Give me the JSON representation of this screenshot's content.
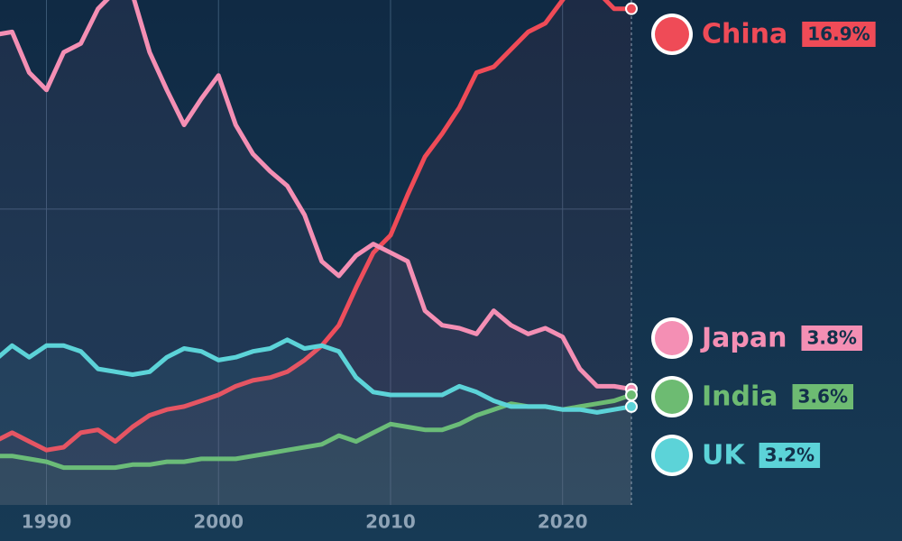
{
  "chart_data": {
    "type": "line",
    "x": [
      1987,
      1988,
      1989,
      1990,
      1991,
      1992,
      1993,
      1994,
      1995,
      1996,
      1997,
      1998,
      1999,
      2000,
      2001,
      2002,
      2003,
      2004,
      2005,
      2006,
      2007,
      2008,
      2009,
      2010,
      2011,
      2012,
      2013,
      2014,
      2015,
      2016,
      2017,
      2018,
      2019,
      2020,
      2021,
      2022,
      2023,
      2024
    ],
    "series": [
      {
        "name": "China",
        "color": "#ef4b57",
        "end_label": "16.9%",
        "values": [
          2.0,
          2.3,
          2.0,
          1.7,
          1.8,
          2.3,
          2.4,
          2.0,
          2.5,
          2.9,
          3.1,
          3.2,
          3.4,
          3.6,
          3.9,
          4.1,
          4.2,
          4.4,
          4.8,
          5.3,
          6.0,
          7.3,
          8.5,
          9.1,
          10.5,
          11.8,
          12.6,
          13.5,
          14.7,
          14.9,
          15.5,
          16.1,
          16.4,
          17.2,
          18.0,
          17.5,
          16.9,
          16.9
        ]
      },
      {
        "name": "Japan",
        "color": "#f48fb4",
        "end_label": "3.8%",
        "values": [
          16.0,
          16.1,
          14.7,
          14.1,
          15.4,
          15.7,
          16.9,
          17.5,
          17.4,
          15.4,
          14.1,
          12.9,
          13.8,
          14.6,
          12.9,
          11.9,
          11.3,
          10.8,
          9.8,
          8.2,
          7.7,
          8.4,
          8.8,
          8.5,
          8.2,
          6.5,
          6.0,
          5.9,
          5.7,
          6.5,
          6.0,
          5.7,
          5.9,
          5.6,
          4.5,
          3.9,
          3.9,
          3.8
        ]
      },
      {
        "name": "India",
        "color": "#6dbb72",
        "end_label": "3.6%",
        "values": [
          1.5,
          1.5,
          1.4,
          1.3,
          1.1,
          1.1,
          1.1,
          1.1,
          1.2,
          1.2,
          1.3,
          1.3,
          1.4,
          1.4,
          1.4,
          1.5,
          1.6,
          1.7,
          1.8,
          1.9,
          2.2,
          2.0,
          2.3,
          2.6,
          2.5,
          2.4,
          2.4,
          2.6,
          2.9,
          3.1,
          3.3,
          3.2,
          3.2,
          3.1,
          3.2,
          3.3,
          3.4,
          3.6
        ]
      },
      {
        "name": "UK",
        "color": "#5cd3d8",
        "end_label": "3.2%",
        "values": [
          4.8,
          5.3,
          4.9,
          5.3,
          5.3,
          5.1,
          4.5,
          4.4,
          4.3,
          4.4,
          4.9,
          5.2,
          5.1,
          4.8,
          4.9,
          5.1,
          5.2,
          5.5,
          5.2,
          5.3,
          5.1,
          4.2,
          3.7,
          3.6,
          3.6,
          3.6,
          3.6,
          3.9,
          3.7,
          3.4,
          3.2,
          3.2,
          3.2,
          3.1,
          3.1,
          3.0,
          3.1,
          3.2
        ]
      }
    ],
    "xlim": [
      1987.3,
      2024
    ],
    "xticks": [
      1990,
      2000,
      2010,
      2020
    ],
    "ylim": [
      0,
      17.2
    ],
    "yticks": [
      10
    ],
    "grid": true
  }
}
